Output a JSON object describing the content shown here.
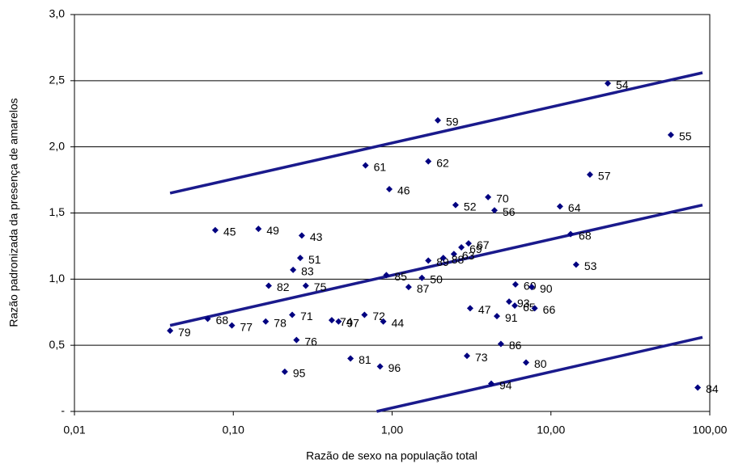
{
  "chart_data": {
    "type": "scatter",
    "x_label": "Razão de sexo na população total",
    "y_label": "Razão padronizada da presença de amarelos",
    "log_x": true,
    "grid": true,
    "xlim": [
      0.01,
      100
    ],
    "xticks": [
      {
        "value": 0.01,
        "label": "0,01"
      },
      {
        "value": 0.1,
        "label": "0,10"
      },
      {
        "value": 1,
        "label": "1,00"
      },
      {
        "value": 10,
        "label": "10,00"
      },
      {
        "value": 100,
        "label": "100,00"
      }
    ],
    "ylim": [
      0,
      3
    ],
    "yticks": [
      {
        "value": 0,
        "label": "-"
      },
      {
        "value": 0.5,
        "label": "0,5"
      },
      {
        "value": 1,
        "label": "1,0"
      },
      {
        "value": 1.5,
        "label": "1,5"
      },
      {
        "value": 2,
        "label": "2,0"
      },
      {
        "value": 2.5,
        "label": "2,5"
      },
      {
        "value": 3,
        "label": "3,0"
      }
    ],
    "series": [
      {
        "color": "#000080",
        "labels": [
          "54",
          "55",
          "59",
          "57",
          "61",
          "62",
          "46",
          "52",
          "70",
          "56",
          "64",
          "68",
          "53",
          "45",
          "49",
          "43",
          "51",
          "83",
          "67",
          "69",
          "63",
          "89",
          "88",
          "82",
          "75",
          "85",
          "50",
          "87",
          "60",
          "90",
          "93",
          "91",
          "65",
          "66",
          "47",
          "68",
          "77",
          "79",
          "78",
          "71",
          "74",
          "97",
          "72",
          "44",
          "76",
          "86",
          "95",
          "81",
          "96",
          "73",
          "80",
          "94",
          "84"
        ],
        "x": [
          22.8,
          56.9,
          1.94,
          17.6,
          0.68,
          1.69,
          0.96,
          2.51,
          4.02,
          4.41,
          11.4,
          13.3,
          14.4,
          0.077,
          0.144,
          0.27,
          0.264,
          0.238,
          3.03,
          2.73,
          2.45,
          1.69,
          2.1,
          0.167,
          0.286,
          0.92,
          1.54,
          1.27,
          5.98,
          7.57,
          5.45,
          4.57,
          5.92,
          7.9,
          3.1,
          0.069,
          0.098,
          0.04,
          0.16,
          0.235,
          0.417,
          0.46,
          0.67,
          0.88,
          0.25,
          4.84,
          0.211,
          0.547,
          0.84,
          2.96,
          6.97,
          4.21,
          84
        ],
        "values": [
          2.48,
          2.09,
          2.2,
          1.79,
          1.86,
          1.89,
          1.68,
          1.56,
          1.62,
          1.52,
          1.55,
          1.34,
          1.11,
          1.37,
          1.38,
          1.33,
          1.16,
          1.07,
          1.27,
          1.24,
          1.19,
          1.14,
          1.16,
          0.95,
          0.95,
          1.03,
          1.01,
          0.94,
          0.96,
          0.94,
          0.83,
          0.72,
          0.8,
          0.78,
          0.78,
          0.7,
          0.65,
          0.61,
          0.68,
          0.73,
          0.69,
          0.68,
          0.73,
          0.68,
          0.54,
          0.51,
          0.3,
          0.4,
          0.34,
          0.42,
          0.37,
          0.21,
          0.18
        ]
      }
    ],
    "lines": [
      {
        "color": "#1a1a8c",
        "x": [
          0.04,
          90
        ],
        "values": [
          1.65,
          2.56
        ]
      },
      {
        "color": "#1a1a8c",
        "x": [
          0.04,
          90
        ],
        "values": [
          0.65,
          1.56
        ]
      },
      {
        "color": "#1a1a8c",
        "x": [
          0.8,
          90
        ],
        "values": [
          0,
          0.56
        ]
      }
    ]
  }
}
